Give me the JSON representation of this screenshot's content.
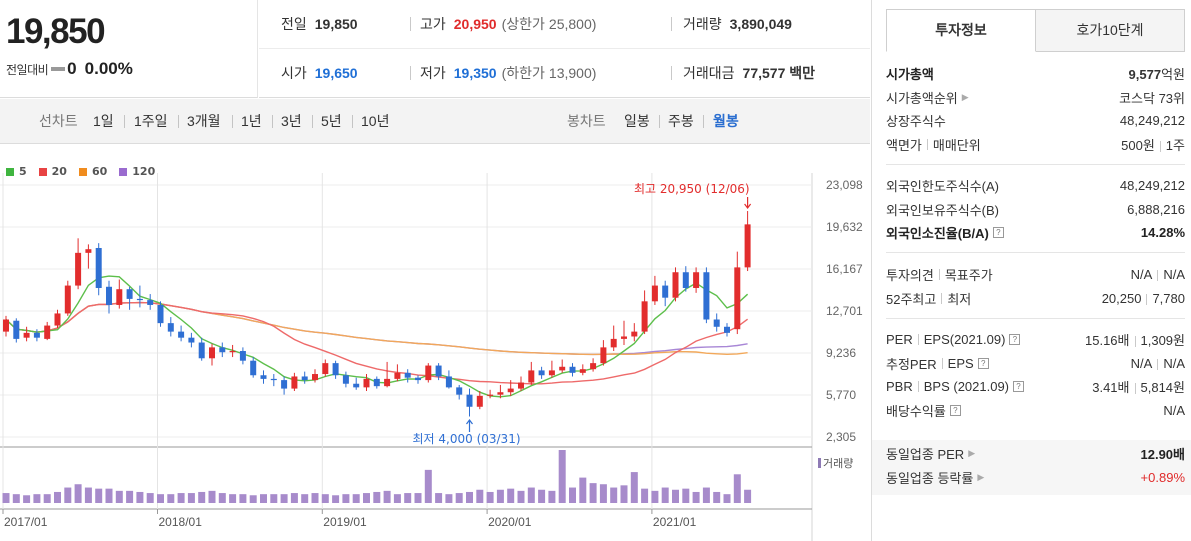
{
  "price": {
    "current": "19,850",
    "diff_label": "전일대비",
    "diff_value": "0",
    "diff_pct": "0.00%"
  },
  "stats": {
    "row1": {
      "prev_close_label": "전일",
      "prev_close": "19,850",
      "high_label": "고가",
      "high": "20,950",
      "upper_limit_label": "(상한가",
      "upper_limit": "25,800)",
      "volume_label": "거래량",
      "volume": "3,890,049"
    },
    "row2": {
      "open_label": "시가",
      "open": "19,650",
      "low_label": "저가",
      "low": "19,350",
      "lower_limit_label": "(하한가",
      "lower_limit": "13,900)",
      "amount_label": "거래대금",
      "amount": "77,577 백만"
    }
  },
  "period_bar": {
    "line_label": "선차트",
    "line_periods": [
      "1일",
      "1주일",
      "3개월",
      "1년",
      "3년",
      "5년",
      "10년"
    ],
    "candle_label": "봉차트",
    "candle_periods": [
      "일봉",
      "주봉",
      "월봉"
    ],
    "active_candle": "월봉"
  },
  "chart_data": {
    "type": "candlestick",
    "interval": "monthly",
    "y_ticks": [
      "23,098",
      "19,632",
      "16,167",
      "12,701",
      "9,236",
      "5,770",
      "2,305"
    ],
    "y_range": [
      2305,
      23098
    ],
    "x_labels": [
      "2017/01",
      "2018/01",
      "2019/01",
      "2020/01",
      "2021/01"
    ],
    "ma_legend": [
      {
        "name": "5",
        "color": "#3fb53f"
      },
      {
        "name": "20",
        "color": "#e84343"
      },
      {
        "name": "60",
        "color": "#f08c1e"
      },
      {
        "name": "120",
        "color": "#9a6bcf"
      }
    ],
    "max_annotation": "최고 20,950 (12/06)",
    "min_annotation": "최저 4,000 (03/31)",
    "volume_label": "거래량",
    "colors": {
      "up": "#e22d2d",
      "down": "#2f6fd3",
      "volume": "#a78bcb",
      "ma5": "#5dbf4b",
      "ma20": "#ee6a6a",
      "ma60": "#f2a85a",
      "ma120": "#a887d6"
    },
    "candles": [
      {
        "o": 11000,
        "c": 12000,
        "h": 12300,
        "l": 10600
      },
      {
        "o": 11900,
        "c": 10400,
        "h": 12100,
        "l": 10100
      },
      {
        "o": 10500,
        "c": 10900,
        "h": 11400,
        "l": 10200
      },
      {
        "o": 10900,
        "c": 10500,
        "h": 11200,
        "l": 10200
      },
      {
        "o": 10400,
        "c": 11500,
        "h": 11800,
        "l": 10300
      },
      {
        "o": 11500,
        "c": 12500,
        "h": 12800,
        "l": 11300
      },
      {
        "o": 12500,
        "c": 14800,
        "h": 15200,
        "l": 12300
      },
      {
        "o": 14800,
        "c": 17500,
        "h": 18700,
        "l": 14500
      },
      {
        "o": 17500,
        "c": 17800,
        "h": 18200,
        "l": 16200
      },
      {
        "o": 17900,
        "c": 14600,
        "h": 18300,
        "l": 14000
      },
      {
        "o": 14700,
        "c": 13200,
        "h": 15200,
        "l": 12500
      },
      {
        "o": 13200,
        "c": 14500,
        "h": 15300,
        "l": 12900
      },
      {
        "o": 14500,
        "c": 13700,
        "h": 14700,
        "l": 12800
      },
      {
        "o": 13700,
        "c": 13600,
        "h": 14800,
        "l": 13000
      },
      {
        "o": 13600,
        "c": 13200,
        "h": 14100,
        "l": 12800
      },
      {
        "o": 13200,
        "c": 11700,
        "h": 13500,
        "l": 11400
      },
      {
        "o": 11700,
        "c": 11000,
        "h": 12200,
        "l": 10600
      },
      {
        "o": 11000,
        "c": 10500,
        "h": 11500,
        "l": 10200
      },
      {
        "o": 10500,
        "c": 10100,
        "h": 10900,
        "l": 9700
      },
      {
        "o": 10100,
        "c": 8800,
        "h": 10500,
        "l": 8600
      },
      {
        "o": 8800,
        "c": 9700,
        "h": 10000,
        "l": 8200
      },
      {
        "o": 9700,
        "c": 9300,
        "h": 10100,
        "l": 8900
      },
      {
        "o": 9300,
        "c": 9400,
        "h": 9900,
        "l": 8900
      },
      {
        "o": 9400,
        "c": 8600,
        "h": 9700,
        "l": 8300
      },
      {
        "o": 8600,
        "c": 7400,
        "h": 8900,
        "l": 7200
      },
      {
        "o": 7400,
        "c": 7100,
        "h": 7800,
        "l": 6700
      },
      {
        "o": 7100,
        "c": 7000,
        "h": 7500,
        "l": 6500
      },
      {
        "o": 7000,
        "c": 6300,
        "h": 7300,
        "l": 5800
      },
      {
        "o": 6300,
        "c": 7300,
        "h": 7600,
        "l": 6100
      },
      {
        "o": 7300,
        "c": 7000,
        "h": 7700,
        "l": 6700
      },
      {
        "o": 7000,
        "c": 7500,
        "h": 7900,
        "l": 6800
      },
      {
        "o": 7500,
        "c": 8400,
        "h": 8700,
        "l": 7300
      },
      {
        "o": 8400,
        "c": 7400,
        "h": 8600,
        "l": 7100
      },
      {
        "o": 7400,
        "c": 6700,
        "h": 7700,
        "l": 6400
      },
      {
        "o": 6700,
        "c": 6400,
        "h": 7200,
        "l": 6200
      },
      {
        "o": 6400,
        "c": 7100,
        "h": 7500,
        "l": 6100
      },
      {
        "o": 7100,
        "c": 6500,
        "h": 7300,
        "l": 6300
      },
      {
        "o": 6500,
        "c": 7100,
        "h": 8500,
        "l": 6400
      },
      {
        "o": 7100,
        "c": 7600,
        "h": 8300,
        "l": 6900
      },
      {
        "o": 7600,
        "c": 7200,
        "h": 7900,
        "l": 6800
      },
      {
        "o": 7200,
        "c": 7000,
        "h": 7400,
        "l": 6700
      },
      {
        "o": 7000,
        "c": 8200,
        "h": 8400,
        "l": 6800
      },
      {
        "o": 8200,
        "c": 7300,
        "h": 8400,
        "l": 7000
      },
      {
        "o": 7300,
        "c": 6400,
        "h": 7800,
        "l": 6300
      },
      {
        "o": 6400,
        "c": 5800,
        "h": 6600,
        "l": 5400
      },
      {
        "o": 5800,
        "c": 4800,
        "h": 6300,
        "l": 4000
      },
      {
        "o": 4800,
        "c": 5700,
        "h": 6100,
        "l": 4600
      },
      {
        "o": 5700,
        "c": 5800,
        "h": 6200,
        "l": 5500
      },
      {
        "o": 5800,
        "c": 6000,
        "h": 6600,
        "l": 5500
      },
      {
        "o": 6000,
        "c": 6300,
        "h": 7000,
        "l": 5700
      },
      {
        "o": 6300,
        "c": 6800,
        "h": 7300,
        "l": 6100
      },
      {
        "o": 6800,
        "c": 7800,
        "h": 8500,
        "l": 6600
      },
      {
        "o": 7800,
        "c": 7400,
        "h": 8100,
        "l": 7100
      },
      {
        "o": 7400,
        "c": 7800,
        "h": 8600,
        "l": 7200
      },
      {
        "o": 7800,
        "c": 8100,
        "h": 8700,
        "l": 7600
      },
      {
        "o": 8100,
        "c": 7600,
        "h": 8400,
        "l": 7300
      },
      {
        "o": 7600,
        "c": 7900,
        "h": 8300,
        "l": 7400
      },
      {
        "o": 7900,
        "c": 8400,
        "h": 8800,
        "l": 7700
      },
      {
        "o": 8400,
        "c": 9700,
        "h": 10300,
        "l": 8200
      },
      {
        "o": 9700,
        "c": 10400,
        "h": 11500,
        "l": 9400
      },
      {
        "o": 10400,
        "c": 10600,
        "h": 11900,
        "l": 9900
      },
      {
        "o": 10600,
        "c": 11000,
        "h": 11700,
        "l": 10200
      },
      {
        "o": 11000,
        "c": 13500,
        "h": 14400,
        "l": 10800
      },
      {
        "o": 13500,
        "c": 14800,
        "h": 15600,
        "l": 13200
      },
      {
        "o": 14800,
        "c": 13800,
        "h": 15200,
        "l": 13100
      },
      {
        "o": 13800,
        "c": 15900,
        "h": 16300,
        "l": 13500
      },
      {
        "o": 15900,
        "c": 14600,
        "h": 16400,
        "l": 14300
      },
      {
        "o": 14600,
        "c": 15900,
        "h": 16300,
        "l": 14200
      },
      {
        "o": 15900,
        "c": 12000,
        "h": 16300,
        "l": 11700
      },
      {
        "o": 12000,
        "c": 11400,
        "h": 12500,
        "l": 11000
      },
      {
        "o": 11400,
        "c": 10900,
        "h": 11700,
        "l": 10600
      },
      {
        "o": 11200,
        "c": 16300,
        "h": 17600,
        "l": 10800
      },
      {
        "o": 16300,
        "c": 19850,
        "h": 20950,
        "l": 16000
      }
    ],
    "volumes": [
      9,
      8,
      7,
      8,
      8,
      10,
      14,
      17,
      14,
      13,
      13,
      11,
      11,
      10,
      9,
      8,
      8,
      9,
      9,
      10,
      11,
      9,
      8,
      8,
      7,
      8,
      8,
      8,
      9,
      8,
      9,
      8,
      7,
      8,
      8,
      9,
      10,
      11,
      8,
      9,
      9,
      30,
      9,
      8,
      9,
      10,
      12,
      10,
      12,
      13,
      11,
      14,
      12,
      11,
      48,
      14,
      23,
      18,
      17,
      14,
      16,
      28,
      13,
      11,
      14,
      12,
      13,
      10,
      14,
      10,
      8,
      26,
      12
    ],
    "volume_max": 48
  },
  "right_panel": {
    "tabs": [
      "투자정보",
      "호가10단계"
    ],
    "active_tab": "투자정보",
    "group1": [
      {
        "k": "시가총액",
        "v_num": "9,577",
        "v_unit": "억원"
      },
      {
        "k": "시가총액순위",
        "v": "코스닥 73위"
      },
      {
        "k": "상장주식수",
        "v": "48,249,212"
      },
      {
        "k1": "액면가",
        "k2": "매매단위",
        "v1": "500원",
        "v2": "1주"
      }
    ],
    "group2": [
      {
        "k": "외국인한도주식수(A)",
        "v": "48,249,212"
      },
      {
        "k": "외국인보유주식수(B)",
        "v": "6,888,216"
      },
      {
        "k": "외국인소진율(B/A)",
        "v": "14.28%"
      }
    ],
    "group3": [
      {
        "k1": "투자의견",
        "k2": "목표주가",
        "v1": "N/A",
        "v2": "N/A"
      },
      {
        "k1": "52주최고",
        "k2": "최저",
        "v1": "20,250",
        "v2": "7,780"
      }
    ],
    "group4": [
      {
        "k1": "PER",
        "k2": "EPS(2021.09)",
        "v1": "15.16배",
        "v2": "1,309원"
      },
      {
        "k1": "추정PER",
        "k2": "EPS",
        "v1": "N/A",
        "v2": "N/A"
      },
      {
        "k1": "PBR",
        "k2": "BPS (2021.09)",
        "v1": "3.41배",
        "v2": "5,814원"
      },
      {
        "k": "배당수익률",
        "v": "N/A"
      }
    ],
    "group5": [
      {
        "k": "동일업종 PER",
        "v": "12.90배"
      },
      {
        "k": "동일업종 등락률",
        "v": "+0.89%"
      }
    ]
  }
}
